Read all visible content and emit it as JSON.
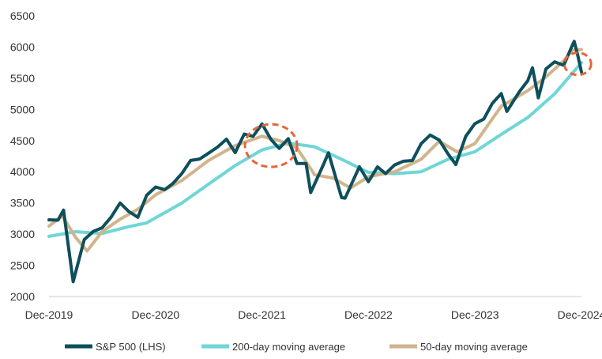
{
  "chart_data": {
    "type": "line",
    "title": "",
    "xlabel": "",
    "ylabel": "",
    "ylim": [
      2000,
      6500
    ],
    "y_ticks": [
      2000,
      2500,
      3000,
      3500,
      4000,
      4500,
      5000,
      5500,
      6000,
      6500
    ],
    "x_tick_labels": [
      "Dec-2019",
      "Dec-2020",
      "Dec-2021",
      "Dec-2022",
      "Dec-2023",
      "Dec-2024"
    ],
    "x_range": [
      "2019-12-31",
      "2024-12-31"
    ],
    "grid": false,
    "legend_position": "bottom",
    "series": [
      {
        "name": "S&P 500 (LHS)",
        "color": "#0e4f5c",
        "dates": [
          "2019-12-31",
          "2020-01-31",
          "2020-02-19",
          "2020-03-23",
          "2020-04-30",
          "2020-05-31",
          "2020-06-30",
          "2020-07-31",
          "2020-08-31",
          "2020-09-30",
          "2020-10-31",
          "2020-11-30",
          "2020-12-31",
          "2021-01-31",
          "2021-02-28",
          "2021-03-31",
          "2021-04-30",
          "2021-05-31",
          "2021-06-30",
          "2021-07-31",
          "2021-08-31",
          "2021-09-30",
          "2021-10-31",
          "2021-11-30",
          "2021-12-31",
          "2022-01-31",
          "2022-02-28",
          "2022-03-31",
          "2022-04-30",
          "2022-05-31",
          "2022-06-16",
          "2022-07-31",
          "2022-08-16",
          "2022-09-30",
          "2022-10-12",
          "2022-11-30",
          "2022-12-31",
          "2023-01-31",
          "2023-02-28",
          "2023-03-31",
          "2023-04-30",
          "2023-05-31",
          "2023-06-30",
          "2023-07-31",
          "2023-08-31",
          "2023-09-30",
          "2023-10-27",
          "2023-11-30",
          "2023-12-31",
          "2024-01-31",
          "2024-02-29",
          "2024-03-31",
          "2024-04-19",
          "2024-05-31",
          "2024-06-30",
          "2024-07-16",
          "2024-08-05",
          "2024-08-31",
          "2024-09-30",
          "2024-10-31",
          "2024-11-30",
          "2024-12-06",
          "2024-12-18",
          "2024-12-31"
        ],
        "values": [
          3230,
          3225,
          3386,
          2237,
          2912,
          3044,
          3100,
          3271,
          3500,
          3363,
          3270,
          3622,
          3756,
          3714,
          3811,
          3973,
          4181,
          4204,
          4297,
          4395,
          4523,
          4307,
          4605,
          4567,
          4766,
          4516,
          4374,
          4530,
          4132,
          4132,
          3667,
          4130,
          4305,
          3586,
          3577,
          4080,
          3840,
          4077,
          3970,
          4109,
          4169,
          4180,
          4450,
          4588,
          4508,
          4288,
          4117,
          4568,
          4770,
          4846,
          5096,
          5254,
          4967,
          5278,
          5460,
          5667,
          5186,
          5648,
          5762,
          5705,
          6032,
          6090,
          5872,
          5600
        ]
      },
      {
        "name": "200-day moving average",
        "color": "#6fd6d6",
        "dates": [
          "2019-12-31",
          "2020-03-31",
          "2020-06-30",
          "2020-09-30",
          "2020-11-30",
          "2021-03-31",
          "2021-06-30",
          "2021-09-30",
          "2021-12-31",
          "2022-03-31",
          "2022-06-30",
          "2022-09-30",
          "2022-12-31",
          "2023-03-31",
          "2023-06-30",
          "2023-09-30",
          "2023-12-31",
          "2024-03-31",
          "2024-06-30",
          "2024-09-30",
          "2024-12-31"
        ],
        "values": [
          2965,
          3040,
          3010,
          3120,
          3180,
          3500,
          3800,
          4100,
          4350,
          4460,
          4400,
          4200,
          3990,
          3970,
          4000,
          4200,
          4320,
          4600,
          4870,
          5250,
          5750
        ]
      },
      {
        "name": "50-day moving average",
        "color": "#d2b48c",
        "dates": [
          "2019-12-31",
          "2020-02-15",
          "2020-03-31",
          "2020-05-10",
          "2020-06-30",
          "2020-08-31",
          "2020-10-31",
          "2020-12-31",
          "2021-03-31",
          "2021-06-30",
          "2021-09-30",
          "2021-12-31",
          "2022-02-28",
          "2022-04-30",
          "2022-06-30",
          "2022-08-31",
          "2022-10-31",
          "2022-12-31",
          "2023-03-31",
          "2023-06-30",
          "2023-08-31",
          "2023-10-31",
          "2023-12-31",
          "2024-03-31",
          "2024-06-30",
          "2024-08-31",
          "2024-10-31",
          "2024-11-30",
          "2024-12-31"
        ],
        "values": [
          3130,
          3290,
          2950,
          2730,
          3040,
          3240,
          3400,
          3630,
          3860,
          4180,
          4420,
          4570,
          4500,
          4380,
          3950,
          3900,
          3740,
          3920,
          4000,
          4200,
          4490,
          4320,
          4450,
          5050,
          5300,
          5520,
          5780,
          5950,
          5960
        ]
      }
    ],
    "annotations": [
      {
        "type": "dashed-circle",
        "color": "#e8643c",
        "center_date": "2022-01-31",
        "center_value": 4420,
        "description": "highlighted region around late 2021 / early 2022 crossing"
      },
      {
        "type": "dashed-circle",
        "color": "#e8643c",
        "center_date": "2024-12-18",
        "center_value": 5730,
        "description": "highlighted region at end of 2024"
      }
    ]
  }
}
